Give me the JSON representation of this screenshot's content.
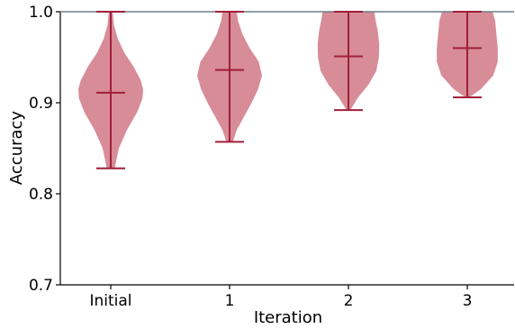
{
  "chart_data": {
    "type": "violin",
    "title": "",
    "xlabel": "Iteration",
    "ylabel": "Accuracy",
    "ylim": [
      0.7,
      1.0
    ],
    "yticks": [
      {
        "value": 0.7,
        "label": "0.7"
      },
      {
        "value": 0.8,
        "label": "0.8"
      },
      {
        "value": 0.9,
        "label": "0.9"
      },
      {
        "value": 1.0,
        "label": "1.0"
      }
    ],
    "categories": [
      "Initial",
      "1",
      "2",
      "3"
    ],
    "grid": false,
    "legend": "none",
    "series": [
      {
        "category": "Initial",
        "min": 0.828,
        "median": 0.911,
        "max": 1.0,
        "density": [
          [
            0.828,
            0.12
          ],
          [
            0.85,
            0.25
          ],
          [
            0.87,
            0.5
          ],
          [
            0.89,
            0.82
          ],
          [
            0.905,
            0.98
          ],
          [
            0.915,
            1.0
          ],
          [
            0.925,
            0.92
          ],
          [
            0.94,
            0.7
          ],
          [
            0.955,
            0.42
          ],
          [
            0.97,
            0.22
          ],
          [
            0.985,
            0.1
          ],
          [
            1.0,
            0.06
          ]
        ]
      },
      {
        "category": "1",
        "min": 0.857,
        "median": 0.936,
        "max": 1.0,
        "density": [
          [
            0.857,
            0.1
          ],
          [
            0.87,
            0.22
          ],
          [
            0.885,
            0.45
          ],
          [
            0.9,
            0.68
          ],
          [
            0.915,
            0.88
          ],
          [
            0.93,
            1.0
          ],
          [
            0.945,
            0.9
          ],
          [
            0.96,
            0.62
          ],
          [
            0.975,
            0.4
          ],
          [
            0.99,
            0.26
          ],
          [
            1.0,
            0.22
          ]
        ]
      },
      {
        "category": "2",
        "min": 0.892,
        "median": 0.951,
        "max": 1.0,
        "density": [
          [
            0.892,
            0.06
          ],
          [
            0.905,
            0.28
          ],
          [
            0.92,
            0.62
          ],
          [
            0.935,
            0.86
          ],
          [
            0.95,
            0.94
          ],
          [
            0.965,
            0.95
          ],
          [
            0.98,
            0.9
          ],
          [
            0.99,
            0.84
          ],
          [
            1.0,
            0.8
          ]
        ]
      },
      {
        "category": "3",
        "min": 0.906,
        "median": 0.96,
        "max": 1.0,
        "density": [
          [
            0.906,
            0.06
          ],
          [
            0.915,
            0.42
          ],
          [
            0.93,
            0.8
          ],
          [
            0.945,
            0.94
          ],
          [
            0.96,
            0.94
          ],
          [
            0.975,
            0.9
          ],
          [
            0.99,
            0.86
          ],
          [
            1.0,
            0.78
          ]
        ]
      }
    ]
  },
  "style": {
    "violin_fill": "#c8606f",
    "violin_opacity": 0.72,
    "line_color": "#a11f3a",
    "axis_color": "#000000",
    "top_line_color": "#6f7f84"
  }
}
